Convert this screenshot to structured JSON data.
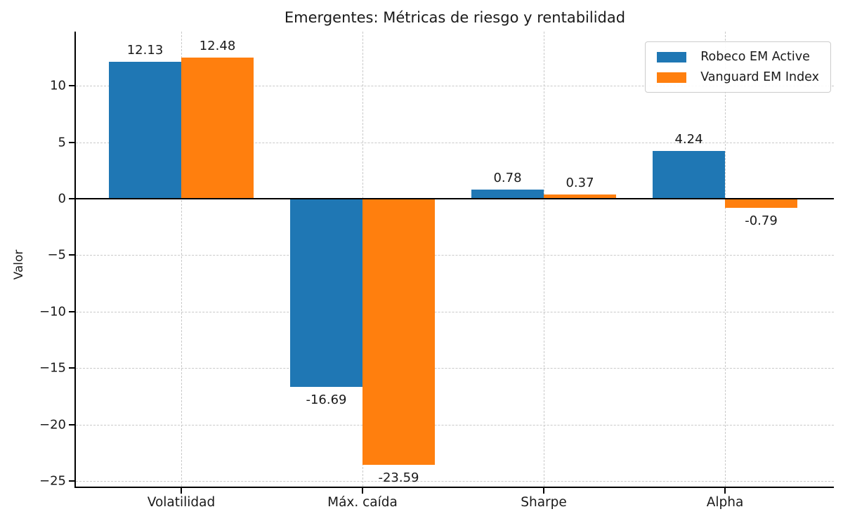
{
  "chart_data": {
    "type": "bar",
    "title": "Emergentes: Métricas de riesgo y rentabilidad",
    "xlabel": "",
    "ylabel": "Valor",
    "categories": [
      "Volatilidad",
      "Máx. caída",
      "Sharpe",
      "Alpha"
    ],
    "series": [
      {
        "name": "Robeco EM Active",
        "color": "#1f77b4",
        "values": [
          12.13,
          -16.69,
          0.78,
          4.24
        ]
      },
      {
        "name": "Vanguard EM Index",
        "color": "#ff7f0e",
        "values": [
          12.48,
          -23.59,
          0.37,
          -0.79
        ]
      }
    ],
    "yticks": [
      10,
      5,
      0,
      -5,
      -10,
      -15,
      -20,
      -25
    ],
    "ylim": [
      -25.5,
      14.8
    ],
    "grid": true,
    "grid_style": "dashed",
    "zero_line": true,
    "legend_position": "upper right",
    "colors": {
      "grid": "#c9c9c9",
      "axis": "#000000",
      "text": "#1a1a1a",
      "legend_border": "#cccccc",
      "background": "#ffffff"
    }
  }
}
